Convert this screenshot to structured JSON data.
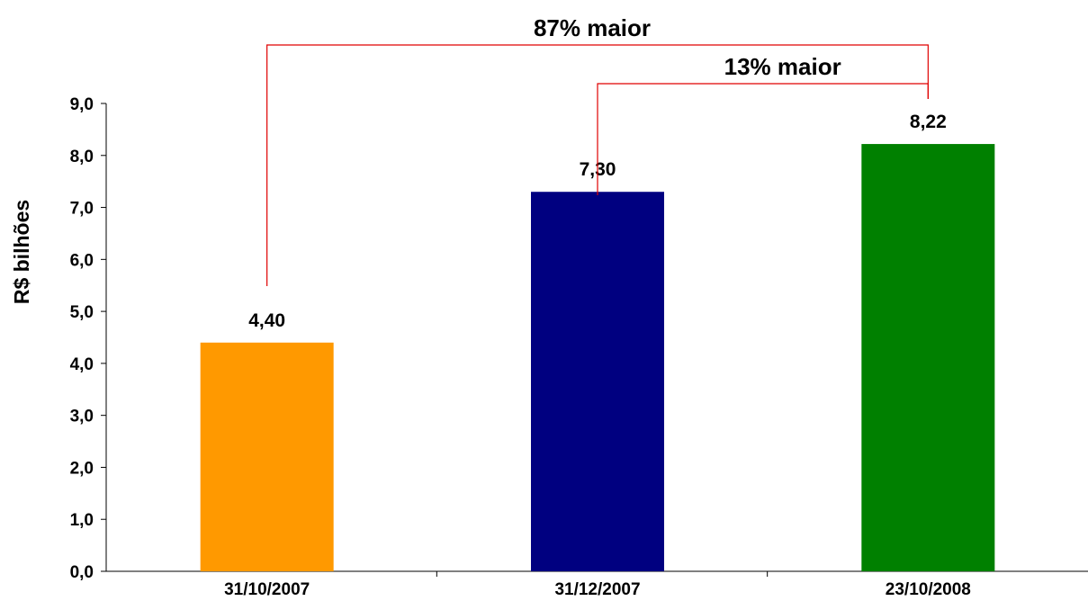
{
  "chart_data": {
    "type": "bar",
    "categories": [
      "31/10/2007",
      "31/12/2007",
      "23/10/2008"
    ],
    "values": [
      4.4,
      7.3,
      8.22
    ],
    "value_labels": [
      "4,40",
      "7,30",
      "8,22"
    ],
    "colors": [
      "#FF9900",
      "#000080",
      "#008000"
    ],
    "title": "",
    "xlabel": "",
    "ylabel": "R$ bilhões",
    "ylim": [
      0,
      9
    ],
    "yticks": [
      0,
      1,
      2,
      3,
      4,
      5,
      6,
      7,
      8,
      9
    ],
    "ytick_labels": [
      "0,0",
      "1,0",
      "2,0",
      "3,0",
      "4,0",
      "5,0",
      "6,0",
      "7,0",
      "8,0",
      "9,0"
    ],
    "grid": false,
    "legend": "none",
    "annotations": [
      {
        "text": "87% maior",
        "from": "31/10/2007",
        "to": "23/10/2008",
        "color": "#E00000"
      },
      {
        "text": "13% maior",
        "from": "31/12/2007",
        "to": "23/10/2008",
        "color": "#E00000"
      }
    ]
  }
}
